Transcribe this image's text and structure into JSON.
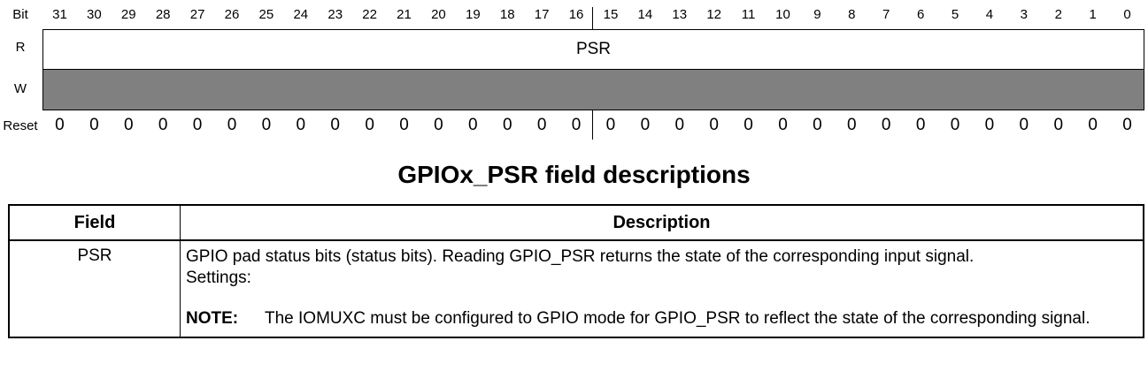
{
  "register": {
    "bit_header": "Bit",
    "bits": [
      "31",
      "30",
      "29",
      "28",
      "27",
      "26",
      "25",
      "24",
      "23",
      "22",
      "21",
      "20",
      "19",
      "18",
      "17",
      "16",
      "15",
      "14",
      "13",
      "12",
      "11",
      "10",
      "9",
      "8",
      "7",
      "6",
      "5",
      "4",
      "3",
      "2",
      "1",
      "0"
    ],
    "row_read": "R",
    "row_write": "W",
    "row_reset": "Reset",
    "field_name": "PSR",
    "reset_values": [
      "0",
      "0",
      "0",
      "0",
      "0",
      "0",
      "0",
      "0",
      "0",
      "0",
      "0",
      "0",
      "0",
      "0",
      "0",
      "0",
      "0",
      "0",
      "0",
      "0",
      "0",
      "0",
      "0",
      "0",
      "0",
      "0",
      "0",
      "0",
      "0",
      "0",
      "0",
      "0"
    ],
    "write_fill_color": "#808080"
  },
  "section_title": "GPIOx_PSR field descriptions",
  "table": {
    "headers": {
      "field": "Field",
      "description": "Description"
    },
    "rows": [
      {
        "field": "PSR",
        "description": "GPIO pad status bits (status bits). Reading GPIO_PSR returns the state of the corresponding input signal.",
        "settings": "Settings:",
        "note_label": "NOTE:",
        "note_text": "The IOMUXC must be configured to GPIO mode for GPIO_PSR to reflect the state of the corresponding signal."
      }
    ]
  }
}
